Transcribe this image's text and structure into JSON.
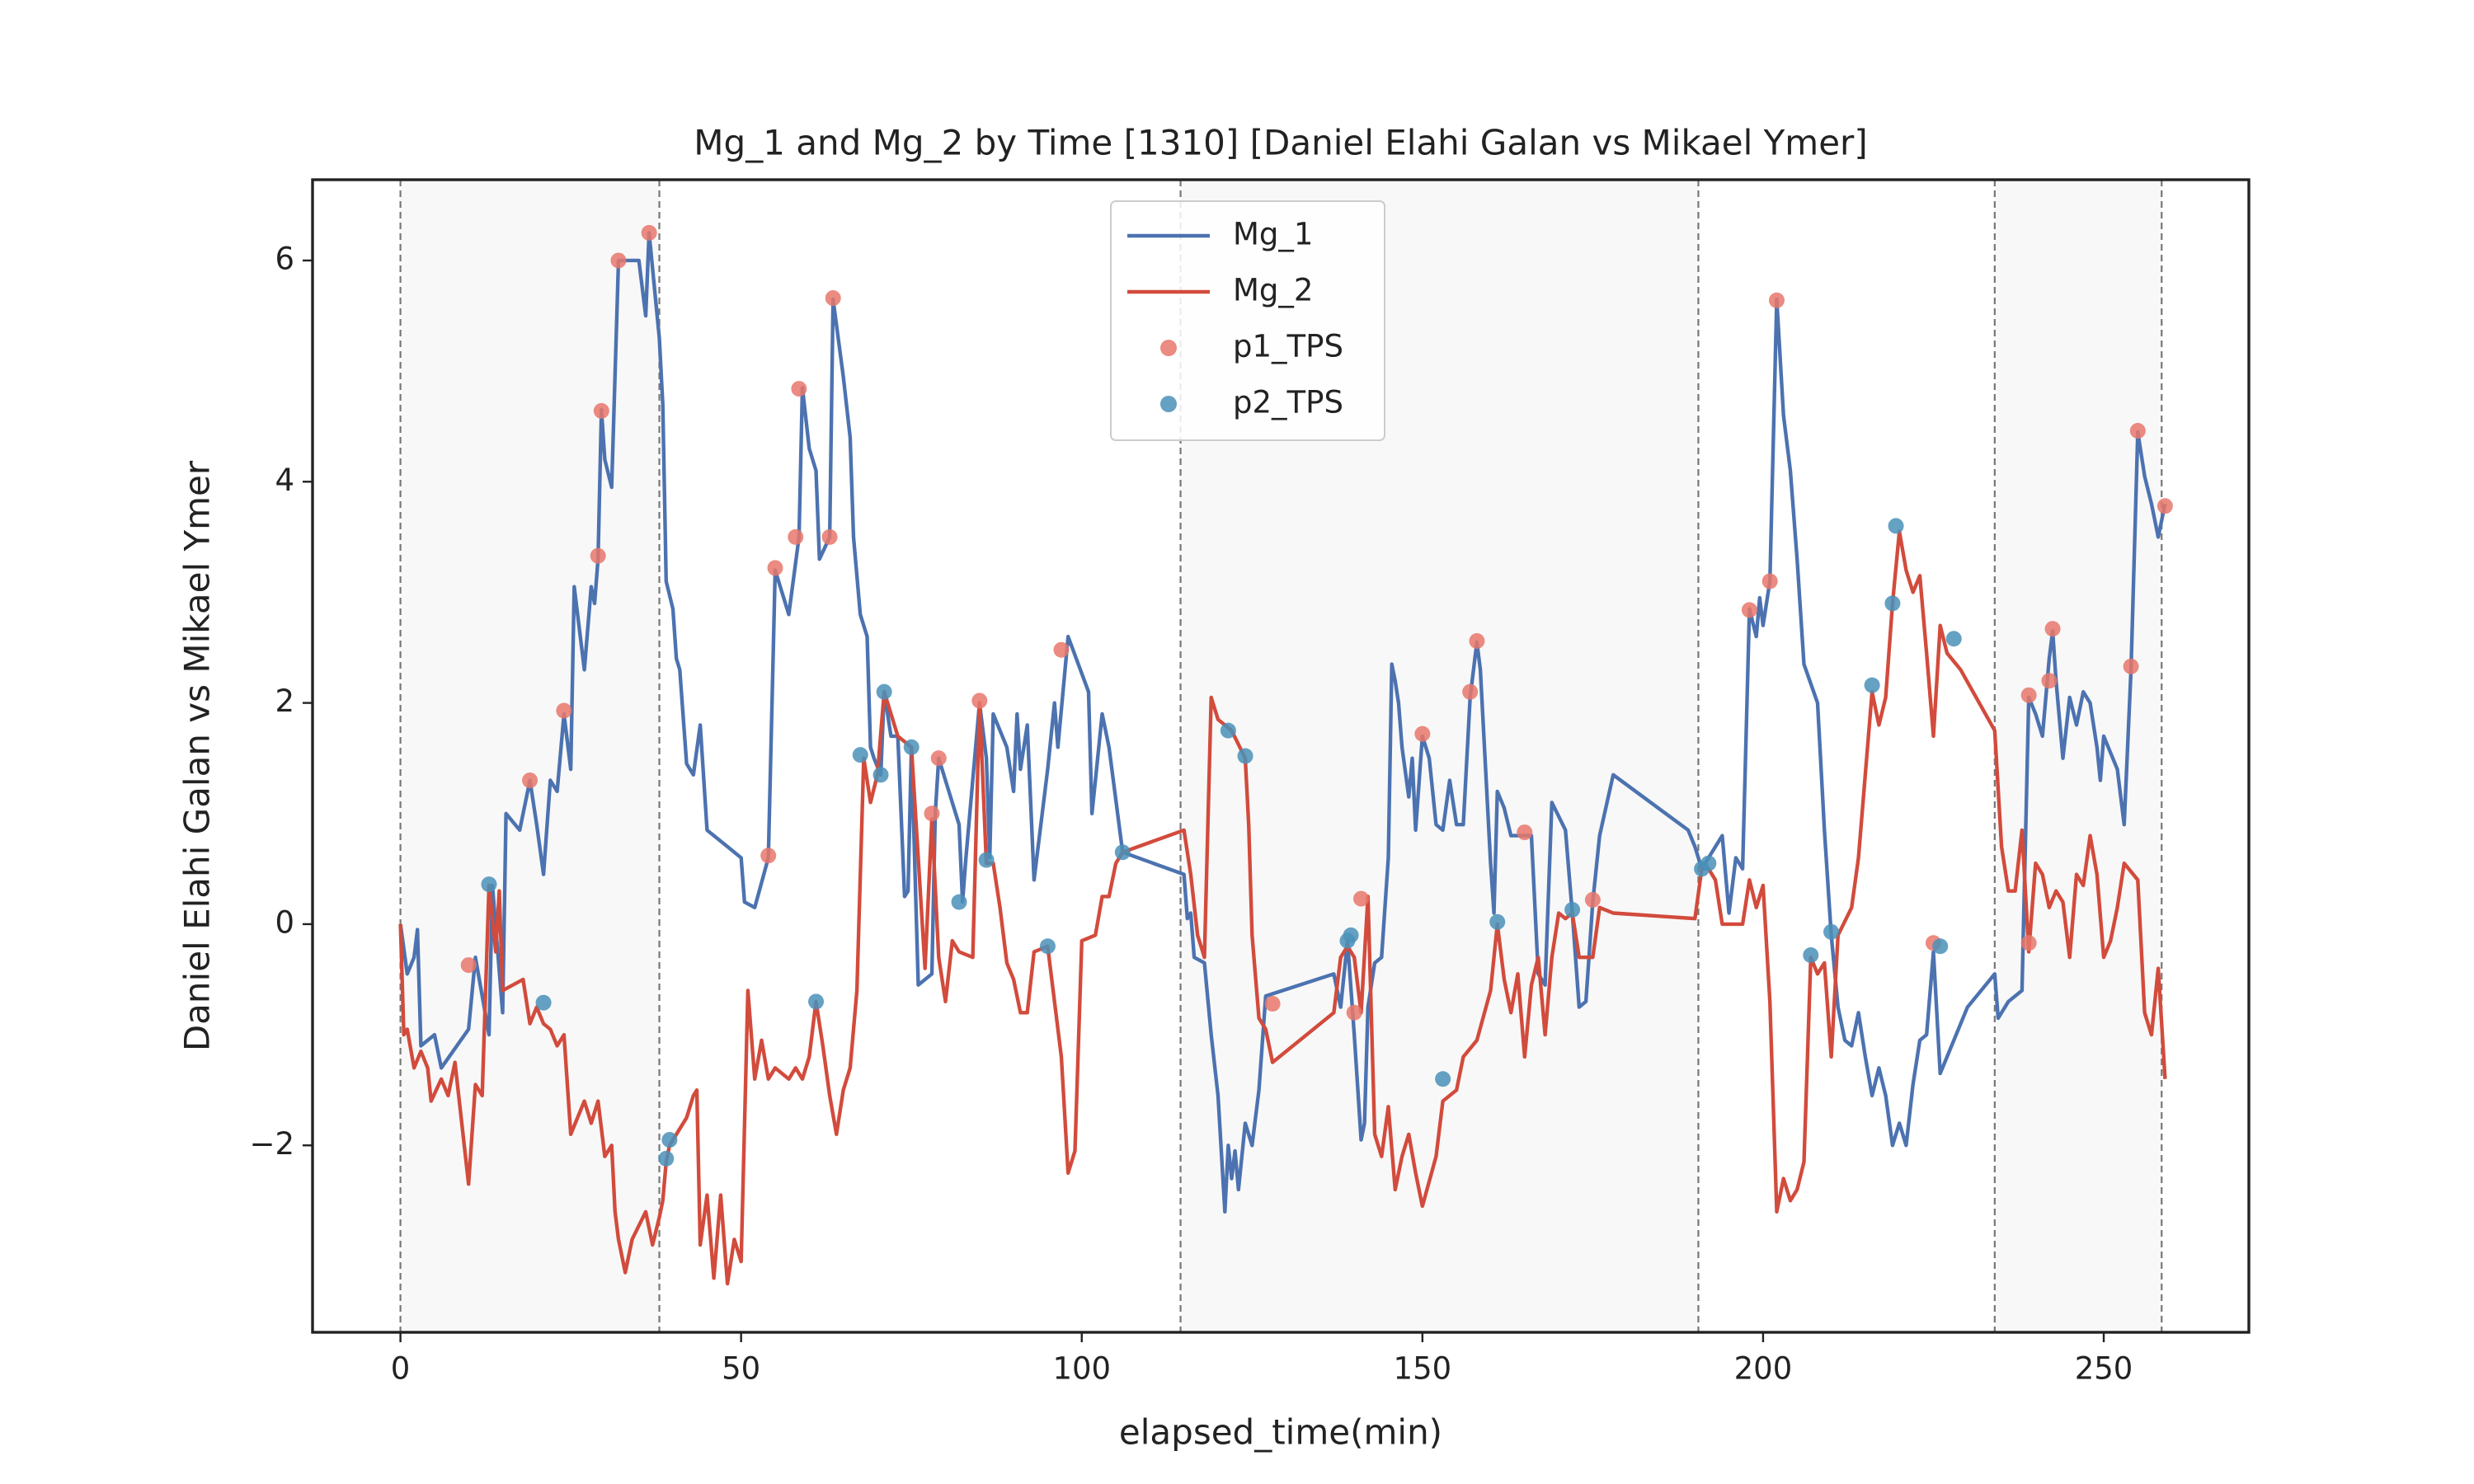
{
  "chart_data": {
    "type": "line",
    "title": "Mg_1 and Mg_2 by Time [1310] [Daniel Elahi Galan vs Mikael Ymer]",
    "xlabel": "elapsed_time(min)",
    "ylabel": "Daniel Elahi Galan vs Mikael Ymer",
    "xlim": [
      -12.9,
      271.3
    ],
    "ylim": [
      -3.69,
      6.73
    ],
    "xticks": [
      0,
      50,
      100,
      150,
      200,
      250
    ],
    "yticks": [
      {
        "value": -2,
        "label": "−2"
      },
      0,
      2,
      4,
      6
    ],
    "grid": false,
    "legend": "upper center",
    "vlines": [
      0,
      38,
      114.5,
      190.5,
      234,
      258.5
    ],
    "shaded_spans": [
      [
        0,
        38
      ],
      [
        114.5,
        190.5
      ],
      [
        234,
        258.5
      ]
    ],
    "series": [
      {
        "name": "Mg_1",
        "type": "line",
        "color": "#4c72b0",
        "x": [
          0,
          1,
          2,
          2.5,
          3,
          5,
          6,
          10,
          11,
          13,
          13.5,
          15,
          15.5,
          17.5,
          19,
          20,
          21,
          22,
          23,
          24,
          25,
          25.5,
          27,
          28,
          28.5,
          29,
          29.5,
          30,
          31,
          32,
          34,
          35,
          36,
          36.5,
          38,
          38.5,
          39,
          40,
          40.5,
          41,
          42,
          43,
          44,
          45,
          50,
          50.5,
          52,
          54,
          55,
          57,
          58.5,
          59,
          60,
          61,
          61.5,
          63,
          63.5,
          65,
          66,
          66.5,
          67.5,
          68.5,
          69,
          69.5,
          70.5,
          71,
          72,
          73,
          74,
          74.5,
          75,
          76,
          78,
          78.5,
          79,
          80,
          82,
          82.5,
          83,
          85,
          86,
          86.5,
          87,
          89,
          90,
          90.5,
          91,
          92,
          93,
          95,
          96,
          96.5,
          98,
          101,
          101.5,
          102,
          103,
          104,
          106,
          115,
          115.5,
          116,
          116.5,
          118,
          119,
          120,
          121,
          121.5,
          122,
          122.5,
          123,
          124,
          125,
          126,
          127,
          137,
          138,
          139,
          140,
          141,
          141.5,
          142,
          143,
          144,
          145,
          145.5,
          146,
          146.5,
          147,
          148,
          148.5,
          149,
          150,
          151,
          152,
          153,
          154,
          155,
          156,
          157,
          158,
          158.5,
          160,
          160.5,
          161,
          162,
          163,
          166,
          167,
          168,
          169,
          171,
          172,
          173,
          174,
          175,
          176,
          178,
          189,
          190,
          191,
          193,
          194,
          195,
          196,
          197,
          198,
          199,
          199.5,
          200,
          201,
          202,
          203,
          204,
          205,
          206,
          208,
          209,
          210,
          211,
          212,
          213,
          214,
          215,
          216,
          217,
          218,
          219,
          220,
          221,
          222,
          223,
          224,
          225,
          226,
          230,
          234,
          234.5,
          236,
          238,
          239,
          240,
          241,
          242,
          242.5,
          243,
          244,
          245,
          246,
          247,
          248,
          249,
          249.5,
          250,
          252,
          253,
          254,
          255,
          256,
          257,
          258,
          259
        ],
        "values": [
          0,
          -0.45,
          -0.3,
          -0.05,
          -1.1,
          -1.0,
          -1.3,
          -0.95,
          -0.3,
          -1.0,
          0.35,
          -0.8,
          1.0,
          0.85,
          1.3,
          0.9,
          0.45,
          1.3,
          1.2,
          1.9,
          1.4,
          3.05,
          2.3,
          3.05,
          2.9,
          3.3,
          4.65,
          4.2,
          3.95,
          6.0,
          6.0,
          6.0,
          5.5,
          6.25,
          5.3,
          4.7,
          3.1,
          2.85,
          2.4,
          2.3,
          1.45,
          1.35,
          1.8,
          0.85,
          0.6,
          0.2,
          0.15,
          0.6,
          3.2,
          2.8,
          3.5,
          4.85,
          4.3,
          4.1,
          3.3,
          3.5,
          5.65,
          4.95,
          4.4,
          3.5,
          2.8,
          2.6,
          1.6,
          1.5,
          1.35,
          2.1,
          1.7,
          1.7,
          0.25,
          0.3,
          1.6,
          -0.55,
          -0.45,
          1.0,
          1.5,
          1.3,
          0.9,
          0.2,
          0.6,
          2.0,
          1.5,
          0.6,
          1.9,
          1.6,
          1.2,
          1.9,
          1.4,
          1.8,
          0.4,
          1.4,
          2.0,
          1.6,
          2.6,
          2.1,
          1.0,
          1.3,
          1.9,
          1.6,
          0.65,
          0.45,
          0.05,
          0.1,
          -0.3,
          -0.35,
          -1.0,
          -1.55,
          -2.6,
          -2.0,
          -2.3,
          -2.05,
          -2.4,
          -1.8,
          -2.0,
          -1.5,
          -0.65,
          -0.45,
          -0.75,
          -0.15,
          -1.0,
          -1.95,
          -1.8,
          -0.75,
          -0.35,
          -0.3,
          0.6,
          2.35,
          2.2,
          2.0,
          1.6,
          1.15,
          1.5,
          0.85,
          1.7,
          1.5,
          0.9,
          0.85,
          1.3,
          0.9,
          0.9,
          2.05,
          2.55,
          2.3,
          0.55,
          0.1,
          1.2,
          1.05,
          0.8,
          0.8,
          -0.45,
          -0.55,
          1.1,
          0.85,
          0.1,
          -0.75,
          -0.7,
          0.2,
          0.8,
          1.35,
          0.85,
          0.7,
          0.5,
          0.7,
          0.8,
          0.1,
          0.6,
          0.5,
          2.85,
          2.6,
          2.95,
          2.7,
          3.1,
          5.65,
          4.6,
          4.1,
          3.3,
          2.35,
          2.0,
          0.85,
          -0.1,
          -0.75,
          -1.05,
          -1.1,
          -0.8,
          -1.2,
          -1.55,
          -1.3,
          -1.55,
          -2.0,
          -1.8,
          -2.0,
          -1.45,
          -1.05,
          -1.0,
          -0.25,
          -1.35,
          -0.75,
          -0.45,
          -0.85,
          -0.7,
          -0.6,
          2.05,
          1.9,
          1.7,
          2.4,
          2.65,
          2.2,
          1.5,
          2.05,
          1.8,
          2.1,
          2.0,
          1.6,
          1.3,
          1.7,
          1.4,
          0.9,
          2.3,
          4.45,
          4.05,
          3.8,
          3.5,
          3.8
        ]
      },
      {
        "name": "Mg_2",
        "type": "line",
        "color": "#d24b3c",
        "x": [
          0,
          0.5,
          1,
          2,
          3,
          4,
          4.5,
          6,
          7,
          8,
          10,
          11,
          12,
          13,
          14,
          14.5,
          15,
          18,
          19,
          20,
          21,
          22,
          23,
          24,
          25,
          27,
          28,
          29,
          30,
          31,
          31.5,
          32,
          33,
          34,
          36,
          37,
          38,
          38.5,
          39,
          39.5,
          42,
          43,
          43.5,
          44,
          45,
          46,
          47,
          48,
          49,
          50,
          51,
          52,
          53,
          54,
          55,
          57,
          58,
          59,
          60,
          61,
          62,
          63,
          64,
          65,
          66,
          67,
          68,
          69,
          70,
          71,
          73,
          75,
          77,
          78,
          79,
          80,
          81,
          82,
          84,
          85,
          86,
          87,
          88,
          89,
          90,
          91,
          92,
          93,
          95,
          97,
          98,
          99,
          100,
          102,
          103,
          104,
          105,
          106,
          115,
          116,
          117,
          118,
          119,
          120,
          122,
          124,
          124.5,
          125,
          126,
          127,
          128,
          132,
          137,
          138,
          139,
          140,
          141,
          142,
          143,
          144,
          145,
          146,
          147,
          148,
          149,
          150,
          152,
          153,
          155,
          156,
          158,
          160,
          161,
          162,
          163,
          164,
          165,
          166,
          167,
          168,
          169,
          170,
          171,
          172,
          173,
          175,
          176,
          178,
          190,
          191,
          192,
          193,
          194,
          197,
          198,
          199,
          200,
          201,
          202,
          203,
          204,
          205,
          206,
          207,
          208,
          209,
          210,
          211,
          213,
          214,
          216,
          217,
          218,
          219,
          220,
          221,
          222,
          223,
          224,
          225,
          226,
          227,
          229,
          234,
          235,
          236,
          237,
          238,
          239,
          240,
          241,
          242,
          243,
          244,
          245,
          246,
          247,
          248,
          249,
          250,
          251,
          252,
          253,
          255,
          256,
          257,
          258,
          259
        ],
        "values": [
          0,
          -1.0,
          -0.95,
          -1.3,
          -1.15,
          -1.3,
          -1.6,
          -1.4,
          -1.55,
          -1.25,
          -2.35,
          -1.45,
          -1.55,
          0.35,
          -0.25,
          0.3,
          -0.6,
          -0.5,
          -0.9,
          -0.75,
          -0.9,
          -0.95,
          -1.1,
          -1.0,
          -1.9,
          -1.6,
          -1.8,
          -1.6,
          -2.1,
          -2.0,
          -2.6,
          -2.85,
          -3.15,
          -2.85,
          -2.6,
          -2.9,
          -2.65,
          -2.5,
          -2.15,
          -2.0,
          -1.75,
          -1.55,
          -1.5,
          -2.9,
          -2.45,
          -3.2,
          -2.45,
          -3.25,
          -2.85,
          -3.05,
          -0.6,
          -1.4,
          -1.05,
          -1.4,
          -1.3,
          -1.4,
          -1.3,
          -1.4,
          -1.2,
          -0.7,
          -1.1,
          -1.55,
          -1.9,
          -1.5,
          -1.3,
          -0.6,
          1.5,
          1.1,
          1.35,
          2.1,
          1.7,
          1.6,
          -0.4,
          0.95,
          -0.3,
          -0.7,
          -0.15,
          -0.25,
          -0.3,
          2.0,
          0.55,
          0.55,
          0.15,
          -0.35,
          -0.5,
          -0.8,
          -0.8,
          -0.25,
          -0.2,
          -1.2,
          -2.25,
          -2.05,
          -0.15,
          -0.1,
          0.25,
          0.25,
          0.55,
          0.65,
          0.85,
          0.45,
          -0.1,
          -0.3,
          2.05,
          1.85,
          1.75,
          1.5,
          0.9,
          -0.1,
          -0.85,
          -0.95,
          -1.25,
          -1.05,
          -0.8,
          -0.3,
          -0.2,
          -0.3,
          -0.8,
          0.25,
          -1.9,
          -2.1,
          -1.65,
          -2.4,
          -2.1,
          -1.9,
          -2.25,
          -2.55,
          -2.1,
          -1.6,
          -1.5,
          -1.2,
          -1.05,
          -0.6,
          0,
          -0.5,
          -0.8,
          -0.45,
          -1.2,
          -0.55,
          -0.3,
          -1.0,
          -0.3,
          0.1,
          0.05,
          0.1,
          -0.3,
          -0.3,
          0.15,
          0.1,
          0.05,
          0.5,
          0.5,
          0.4,
          0,
          0,
          0.4,
          0.15,
          0.35,
          -0.7,
          -2.6,
          -2.3,
          -2.5,
          -2.4,
          -2.15,
          -0.3,
          -0.45,
          -0.35,
          -1.2,
          -0.1,
          0.15,
          0.6,
          2.1,
          1.8,
          2.05,
          2.9,
          3.55,
          3.2,
          3.0,
          3.15,
          2.45,
          1.7,
          2.7,
          2.45,
          2.3,
          1.75,
          0.7,
          0.3,
          0.3,
          0.85,
          -0.25,
          0.55,
          0.45,
          0.15,
          0.3,
          0.2,
          -0.3,
          0.45,
          0.35,
          0.8,
          0.45,
          -0.3,
          -0.15,
          0.15,
          0.55,
          0.4,
          -0.8,
          -1.0,
          -0.4,
          -1.4
        ]
      },
      {
        "name": "p1_TPS",
        "type": "scatter",
        "color": "#e8776b",
        "x": [
          10,
          19,
          24,
          29,
          29.5,
          32,
          36.5,
          54,
          55,
          58,
          58.5,
          63,
          63.5,
          78,
          79,
          85,
          97,
          128,
          140,
          141,
          150,
          157,
          158,
          165,
          175,
          198,
          201,
          202,
          225,
          239,
          239,
          242,
          242.5,
          254,
          255,
          259
        ],
        "values": [
          -0.37,
          1.3,
          1.93,
          3.33,
          4.64,
          6.0,
          6.25,
          0.62,
          3.22,
          3.5,
          4.84,
          3.5,
          5.66,
          1.0,
          1.5,
          2.02,
          2.48,
          -0.72,
          -0.8,
          0.23,
          1.72,
          2.1,
          2.56,
          0.83,
          0.22,
          2.84,
          3.1,
          5.64,
          -0.17,
          -0.17,
          2.07,
          2.2,
          2.67,
          2.33,
          4.46,
          3.78
        ]
      },
      {
        "name": "p2_TPS",
        "type": "scatter",
        "color": "#4a90b8",
        "x": [
          13,
          21,
          39,
          39.5,
          61,
          67.5,
          70.5,
          71,
          75,
          82,
          86,
          95,
          106,
          121.5,
          124,
          139,
          139.5,
          153,
          161,
          172,
          191,
          192,
          207,
          210,
          216,
          219,
          219.5,
          226,
          228
        ],
        "values": [
          0.36,
          -0.71,
          -2.12,
          -1.95,
          -0.7,
          1.53,
          1.35,
          2.1,
          1.6,
          0.2,
          0.58,
          -0.2,
          0.65,
          1.75,
          1.52,
          -0.15,
          -0.1,
          -1.4,
          0.02,
          0.13,
          0.5,
          0.55,
          -0.28,
          -0.07,
          2.16,
          2.9,
          3.6,
          -0.2,
          2.58
        ]
      }
    ]
  }
}
